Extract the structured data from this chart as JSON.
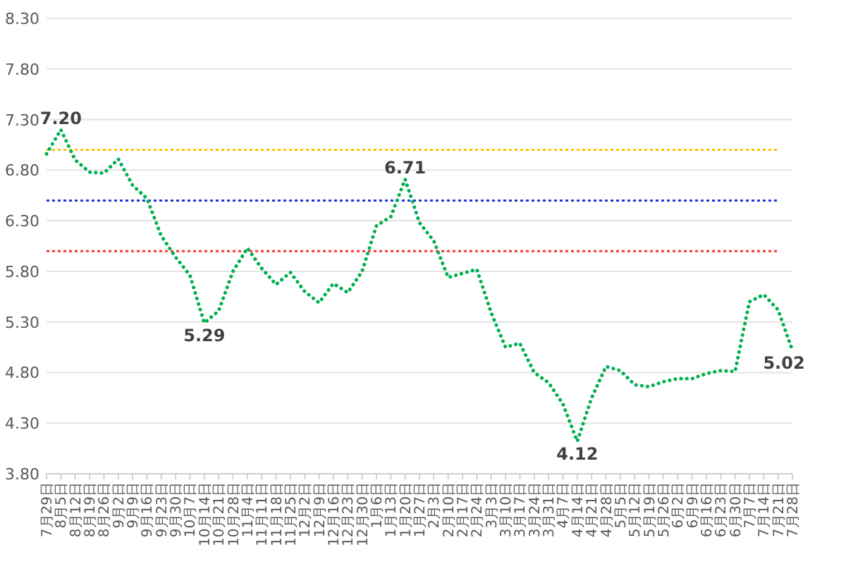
{
  "chart_data": {
    "type": "line",
    "color": "#00b050",
    "line_style": "dotted",
    "grid": "y",
    "legend": false,
    "categories": [
      "7月29日",
      "8月5日",
      "8月12日",
      "8月19日",
      "8月26日",
      "9月2日",
      "9月9日",
      "9月16日",
      "9月23日",
      "9月30日",
      "10月7日",
      "10月14日",
      "10月21日",
      "10月28日",
      "11月4日",
      "11月11日",
      "11月18日",
      "11月25日",
      "12月2日",
      "12月9日",
      "12月16日",
      "12月23日",
      "12月30日",
      "1月6日",
      "1月13日",
      "1月20日",
      "1月27日",
      "2月3日",
      "2月10日",
      "2月17日",
      "2月24日",
      "3月3日",
      "3月10日",
      "3月17日",
      "3月24日",
      "3月31日",
      "4月7日",
      "4月14日",
      "4月21日",
      "4月28日",
      "5月5日",
      "5月12日",
      "5月19日",
      "5月26日",
      "6月2日",
      "6月9日",
      "6月16日",
      "6月23日",
      "6月30日",
      "7月7日",
      "7月14日",
      "7月21日",
      "7月28日"
    ],
    "values": [
      6.96,
      7.2,
      6.9,
      6.78,
      6.77,
      6.91,
      6.65,
      6.52,
      6.15,
      5.94,
      5.76,
      5.29,
      5.41,
      5.8,
      6.03,
      5.83,
      5.67,
      5.79,
      5.6,
      5.49,
      5.68,
      5.59,
      5.8,
      6.25,
      6.34,
      6.71,
      6.28,
      6.1,
      5.74,
      5.78,
      5.82,
      5.39,
      5.05,
      5.09,
      4.8,
      4.7,
      4.49,
      4.12,
      4.55,
      4.86,
      4.82,
      4.68,
      4.66,
      4.71,
      4.74,
      4.74,
      4.79,
      4.82,
      4.81,
      5.5,
      5.57,
      5.42,
      5.02
    ],
    "ylim": [
      3.8,
      8.3
    ],
    "yticks": [
      {
        "value": 3.8,
        "label": "3.80"
      },
      {
        "value": 4.3,
        "label": "4.30"
      },
      {
        "value": 4.8,
        "label": "4.80"
      },
      {
        "value": 5.3,
        "label": "5.30"
      },
      {
        "value": 5.8,
        "label": "5.80"
      },
      {
        "value": 6.3,
        "label": "6.30"
      },
      {
        "value": 6.8,
        "label": "6.80"
      },
      {
        "value": 7.3,
        "label": "7.30"
      },
      {
        "value": 7.8,
        "label": "7.80"
      },
      {
        "value": 8.3,
        "label": "8.30"
      }
    ],
    "ref_lines": [
      {
        "axis": "y",
        "value": 7.0,
        "color": "#ffc000",
        "line_style": "dotted"
      },
      {
        "axis": "y",
        "value": 6.5,
        "color": "#2233dd",
        "line_style": "dotted"
      },
      {
        "axis": "y",
        "value": 6.0,
        "color": "#ff3333",
        "line_style": "dotted"
      }
    ],
    "annotations": [
      {
        "text": "7.20",
        "x": "8月5日",
        "y": 7.2
      },
      {
        "text": "5.29",
        "x": "10月14日",
        "y": 5.29
      },
      {
        "text": "6.71",
        "x": "1月20日",
        "y": 6.71
      },
      {
        "text": "4.12",
        "x": "4月14日",
        "y": 4.12
      },
      {
        "text": "5.02",
        "x": "7月28日",
        "y": 5.02
      }
    ]
  }
}
